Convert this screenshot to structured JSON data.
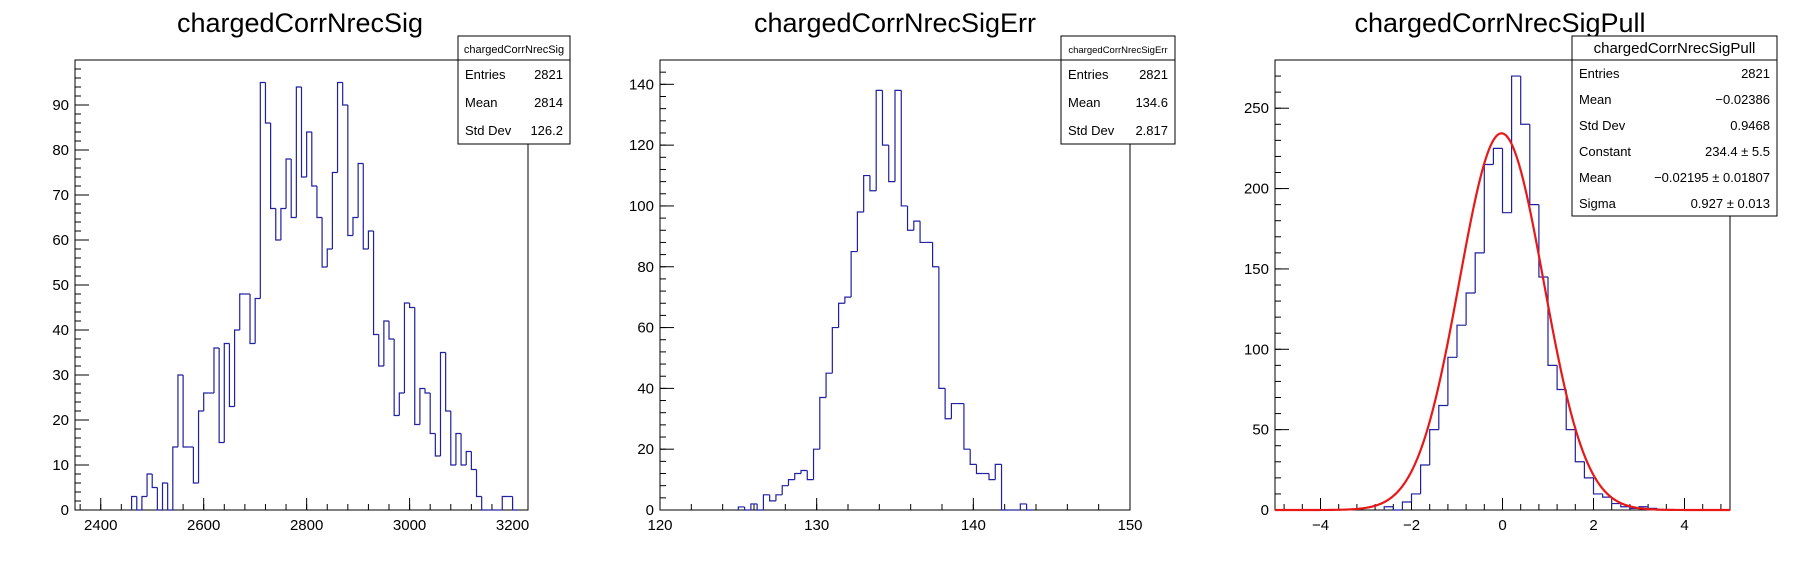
{
  "chart_data": [
    {
      "type": "histogram",
      "title": "chargedCorrNrecSig",
      "xlim": [
        2350,
        3230
      ],
      "ylim": [
        0,
        100
      ],
      "xticks": [
        2400,
        2600,
        2800,
        3000,
        3200
      ],
      "yticks": [
        0,
        10,
        20,
        30,
        40,
        50,
        60,
        70,
        80,
        90
      ],
      "x": [
        2460,
        2470,
        2480,
        2490,
        2500,
        2510,
        2520,
        2530,
        2540,
        2550,
        2560,
        2570,
        2580,
        2590,
        2600,
        2610,
        2620,
        2630,
        2640,
        2650,
        2660,
        2670,
        2680,
        2690,
        2700,
        2710,
        2720,
        2730,
        2740,
        2750,
        2760,
        2770,
        2780,
        2790,
        2800,
        2810,
        2820,
        2830,
        2840,
        2850,
        2860,
        2870,
        2880,
        2890,
        2900,
        2910,
        2920,
        2930,
        2940,
        2950,
        2960,
        2970,
        2980,
        2990,
        3000,
        3010,
        3020,
        3030,
        3040,
        3050,
        3060,
        3070,
        3080,
        3090,
        3100,
        3110,
        3120,
        3130,
        3140,
        3150,
        3160,
        3170,
        3180,
        3190,
        3200
      ],
      "values": [
        3,
        0,
        3,
        8,
        5,
        0,
        6,
        0,
        14,
        30,
        14,
        14,
        6,
        22,
        26,
        26,
        36,
        15,
        37,
        23,
        40,
        48,
        48,
        37,
        47,
        95,
        86,
        67,
        60,
        67,
        78,
        65,
        94,
        74,
        84,
        72,
        65,
        54,
        58,
        75,
        95,
        90,
        61,
        65,
        77,
        58,
        62,
        39,
        32,
        42,
        38,
        21,
        26,
        46,
        45,
        19,
        27,
        26,
        17,
        12,
        35,
        22,
        10,
        17,
        10,
        13,
        9,
        3,
        0,
        0,
        0,
        0,
        3,
        3,
        0
      ],
      "stats_title": "chargedCorrNrecSig",
      "stats": [
        {
          "label": "Entries",
          "value": "2821"
        },
        {
          "label": "Mean",
          "value": "2814"
        },
        {
          "label": "Std Dev",
          "value": "126.2"
        }
      ]
    },
    {
      "type": "histogram",
      "title": "chargedCorrNrecSigErr",
      "xlim": [
        120,
        150
      ],
      "ylim": [
        0,
        148
      ],
      "xticks": [
        120,
        130,
        140,
        150
      ],
      "yticks": [
        0,
        20,
        40,
        60,
        80,
        100,
        120,
        140
      ],
      "x": [
        125.0,
        125.4,
        125.8,
        126.2,
        126.6,
        127.0,
        127.4,
        127.8,
        128.2,
        128.6,
        129.0,
        129.4,
        129.8,
        130.2,
        130.6,
        131.0,
        131.4,
        131.8,
        132.2,
        132.6,
        133.0,
        133.4,
        133.8,
        134.2,
        134.6,
        135.0,
        135.4,
        135.8,
        136.2,
        136.6,
        137.0,
        137.4,
        137.8,
        138.2,
        138.6,
        139.0,
        139.4,
        139.8,
        140.2,
        140.6,
        141.0,
        141.4,
        141.8,
        142.2,
        142.6,
        143.0,
        143.4
      ],
      "values": [
        1,
        0,
        2,
        0,
        5,
        3,
        5,
        8,
        10,
        12,
        13,
        10,
        20,
        37,
        45,
        60,
        68,
        70,
        85,
        98,
        110,
        105,
        138,
        120,
        108,
        138,
        100,
        92,
        95,
        88,
        88,
        80,
        40,
        30,
        35,
        35,
        20,
        15,
        12,
        12,
        10,
        15,
        0,
        0,
        0,
        2,
        0
      ],
      "stats_title": "chargedCorrNrecSigErr",
      "stats": [
        {
          "label": "Entries",
          "value": "2821"
        },
        {
          "label": "Mean",
          "value": "134.6"
        },
        {
          "label": "Std Dev",
          "value": "2.817"
        }
      ]
    },
    {
      "type": "histogram",
      "title": "chargedCorrNrecSigPull",
      "xlim": [
        -5,
        5
      ],
      "ylim": [
        0,
        280
      ],
      "xticks": [
        -4,
        -2,
        0,
        2,
        4
      ],
      "yticks": [
        0,
        50,
        100,
        150,
        200,
        250
      ],
      "x": [
        -2.6,
        -2.4,
        -2.2,
        -2.0,
        -1.8,
        -1.6,
        -1.4,
        -1.2,
        -1.0,
        -0.8,
        -0.6,
        -0.4,
        -0.2,
        0.0,
        0.2,
        0.4,
        0.6,
        0.8,
        1.0,
        1.2,
        1.4,
        1.6,
        1.8,
        2.0,
        2.2,
        2.4,
        2.6,
        2.8,
        3.0,
        3.2,
        3.4
      ],
      "values": [
        2,
        0,
        5,
        10,
        28,
        50,
        65,
        95,
        115,
        135,
        160,
        215,
        225,
        185,
        270,
        240,
        190,
        145,
        90,
        75,
        50,
        30,
        20,
        10,
        8,
        4,
        2,
        1,
        2,
        1,
        0
      ],
      "fit": {
        "constant": 234.4,
        "mean": -0.02195,
        "sigma": 0.927
      },
      "stats_title": "chargedCorrNrecSigPull",
      "stats": [
        {
          "label": "Entries",
          "value": "2821"
        },
        {
          "label": "Mean",
          "value": "−0.02386"
        },
        {
          "label": "Std Dev",
          "value": "0.9468"
        },
        {
          "label": "Constant",
          "value": "234.4 ± 5.5"
        },
        {
          "label": "Mean",
          "value": "−0.02195 ± 0.01807"
        },
        {
          "label": "Sigma",
          "value": "0.927 ± 0.013"
        }
      ]
    }
  ],
  "colors": {
    "histogram": "#2020a0",
    "fit": "#e81818",
    "frame": "#000000"
  }
}
